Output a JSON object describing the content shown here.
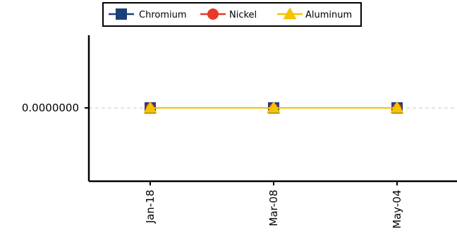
{
  "chart_data": {
    "type": "line",
    "categories": [
      "Jan-18",
      "Mar-08",
      "May-04"
    ],
    "series": [
      {
        "name": "Chromium",
        "values": [
          0,
          0,
          0
        ],
        "color": "#1f3f7a",
        "marker": "square"
      },
      {
        "name": "Nickel",
        "values": [
          0,
          0,
          0
        ],
        "color": "#e8392a",
        "marker": "circle"
      },
      {
        "name": "Aluminum",
        "values": [
          0,
          0,
          0
        ],
        "color": "#f5c200",
        "marker": "triangle"
      }
    ],
    "yticks": [
      {
        "value": 0,
        "label": "0.0000000"
      }
    ],
    "ylim": [
      -1,
      1
    ],
    "grid": "horizontal dashed at y=0",
    "legend_position": "top-center",
    "title": "",
    "xlabel": "",
    "ylabel": ""
  }
}
